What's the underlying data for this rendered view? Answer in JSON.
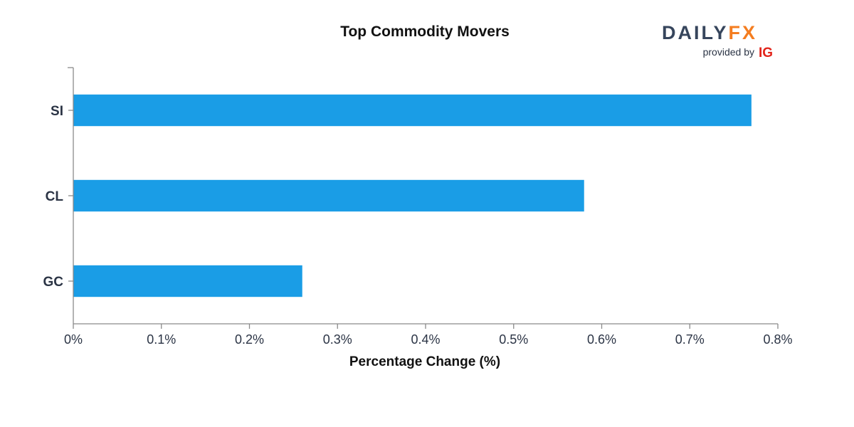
{
  "colors": {
    "bar": "#1a9de6",
    "logo_dark": "#36455c",
    "logo_accent": "#f47d20",
    "ig_red": "#e2241a"
  },
  "logo": {
    "daily": "DAILY",
    "fx": "FX",
    "provided_by": "provided by",
    "ig": "IG"
  },
  "chart_data": {
    "type": "bar",
    "orientation": "horizontal",
    "title": "Top Commodity Movers",
    "xlabel": "Percentage Change (%)",
    "ylabel": "",
    "categories": [
      "SI",
      "CL",
      "GC"
    ],
    "values": [
      0.77,
      0.58,
      0.26
    ],
    "xlim": [
      0,
      0.8
    ],
    "ticks": [
      "0%",
      "0.1%",
      "0.2%",
      "0.3%",
      "0.4%",
      "0.5%",
      "0.6%",
      "0.7%",
      "0.8%"
    ],
    "grid": false,
    "legend": "none"
  }
}
